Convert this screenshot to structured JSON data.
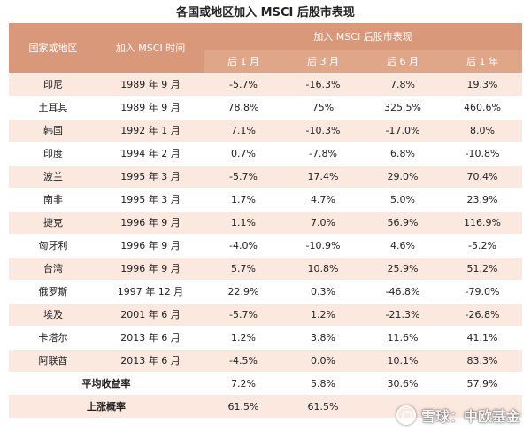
{
  "title": "各国或地区加入 MSCI 后股市表现",
  "header": {
    "country": "国家或地区",
    "join_time": "加入 MSCI 时间",
    "performance": "加入 MSCI 后股市表现",
    "periods": [
      "后 1 月",
      "后 3 月",
      "后 6 月",
      "后 1 年"
    ]
  },
  "rows": [
    {
      "country": "印尼",
      "time": "1989 年 9 月",
      "m1": "-5.7%",
      "m3": "-16.3%",
      "m6": "7.8%",
      "y1": "19.3%"
    },
    {
      "country": "土耳其",
      "time": "1989 年 9 月",
      "m1": "78.8%",
      "m3": "75%",
      "m6": "325.5%",
      "y1": "460.6%"
    },
    {
      "country": "韩国",
      "time": "1992 年 1 月",
      "m1": "7.1%",
      "m3": "-10.3%",
      "m6": "-17.0%",
      "y1": "8.0%"
    },
    {
      "country": "印度",
      "time": "1994 年 2 月",
      "m1": "0.7%",
      "m3": "-7.8%",
      "m6": "6.8%",
      "y1": "-10.8%"
    },
    {
      "country": "波兰",
      "time": "1995 年 3 月",
      "m1": "-5.7%",
      "m3": "17.4%",
      "m6": "29.0%",
      "y1": "70.4%"
    },
    {
      "country": "南非",
      "time": "1995 年 3 月",
      "m1": "1.7%",
      "m3": "4.7%",
      "m6": "5.0%",
      "y1": "23.9%"
    },
    {
      "country": "捷克",
      "time": "1996 年 9 月",
      "m1": "1.1%",
      "m3": "7.0%",
      "m6": "56.9%",
      "y1": "116.9%"
    },
    {
      "country": "匈牙利",
      "time": "1996 年 9 月",
      "m1": "-4.0%",
      "m3": "-10.9%",
      "m6": "4.6%",
      "y1": "-5.2%"
    },
    {
      "country": "台湾",
      "time": "1996 年 9 月",
      "m1": "5.7%",
      "m3": "10.8%",
      "m6": "25.9%",
      "y1": "51.2%"
    },
    {
      "country": "俄罗斯",
      "time": "1997 年 12 月",
      "m1": "22.9%",
      "m3": "0.3%",
      "m6": "-46.8%",
      "y1": "-79.0%"
    },
    {
      "country": "埃及",
      "time": "2001 年 6 月",
      "m1": "-5.7%",
      "m3": "1.2%",
      "m6": "-21.3%",
      "y1": "-26.8%"
    },
    {
      "country": "卡塔尔",
      "time": "2013 年 6 月",
      "m1": "1.2%",
      "m3": "3.8%",
      "m6": "11.6%",
      "y1": "41.1%"
    },
    {
      "country": "阿联酋",
      "time": "2013 年 6 月",
      "m1": "-4.5%",
      "m3": "0.0%",
      "m6": "10.1%",
      "y1": "83.3%"
    }
  ],
  "summary": [
    {
      "label": "平均收益率",
      "m1": "7.2%",
      "m3": "5.8%",
      "m6": "30.6%",
      "y1": "57.9%"
    },
    {
      "label": "上涨概率",
      "m1": "61.5%",
      "m3": "61.5%",
      "m6": "",
      "y1": ""
    }
  ],
  "watermark": "雪球：中欧基金",
  "colors": {
    "header": "#d9987a",
    "row_alt": "#fbe8de",
    "text": "#222222"
  }
}
